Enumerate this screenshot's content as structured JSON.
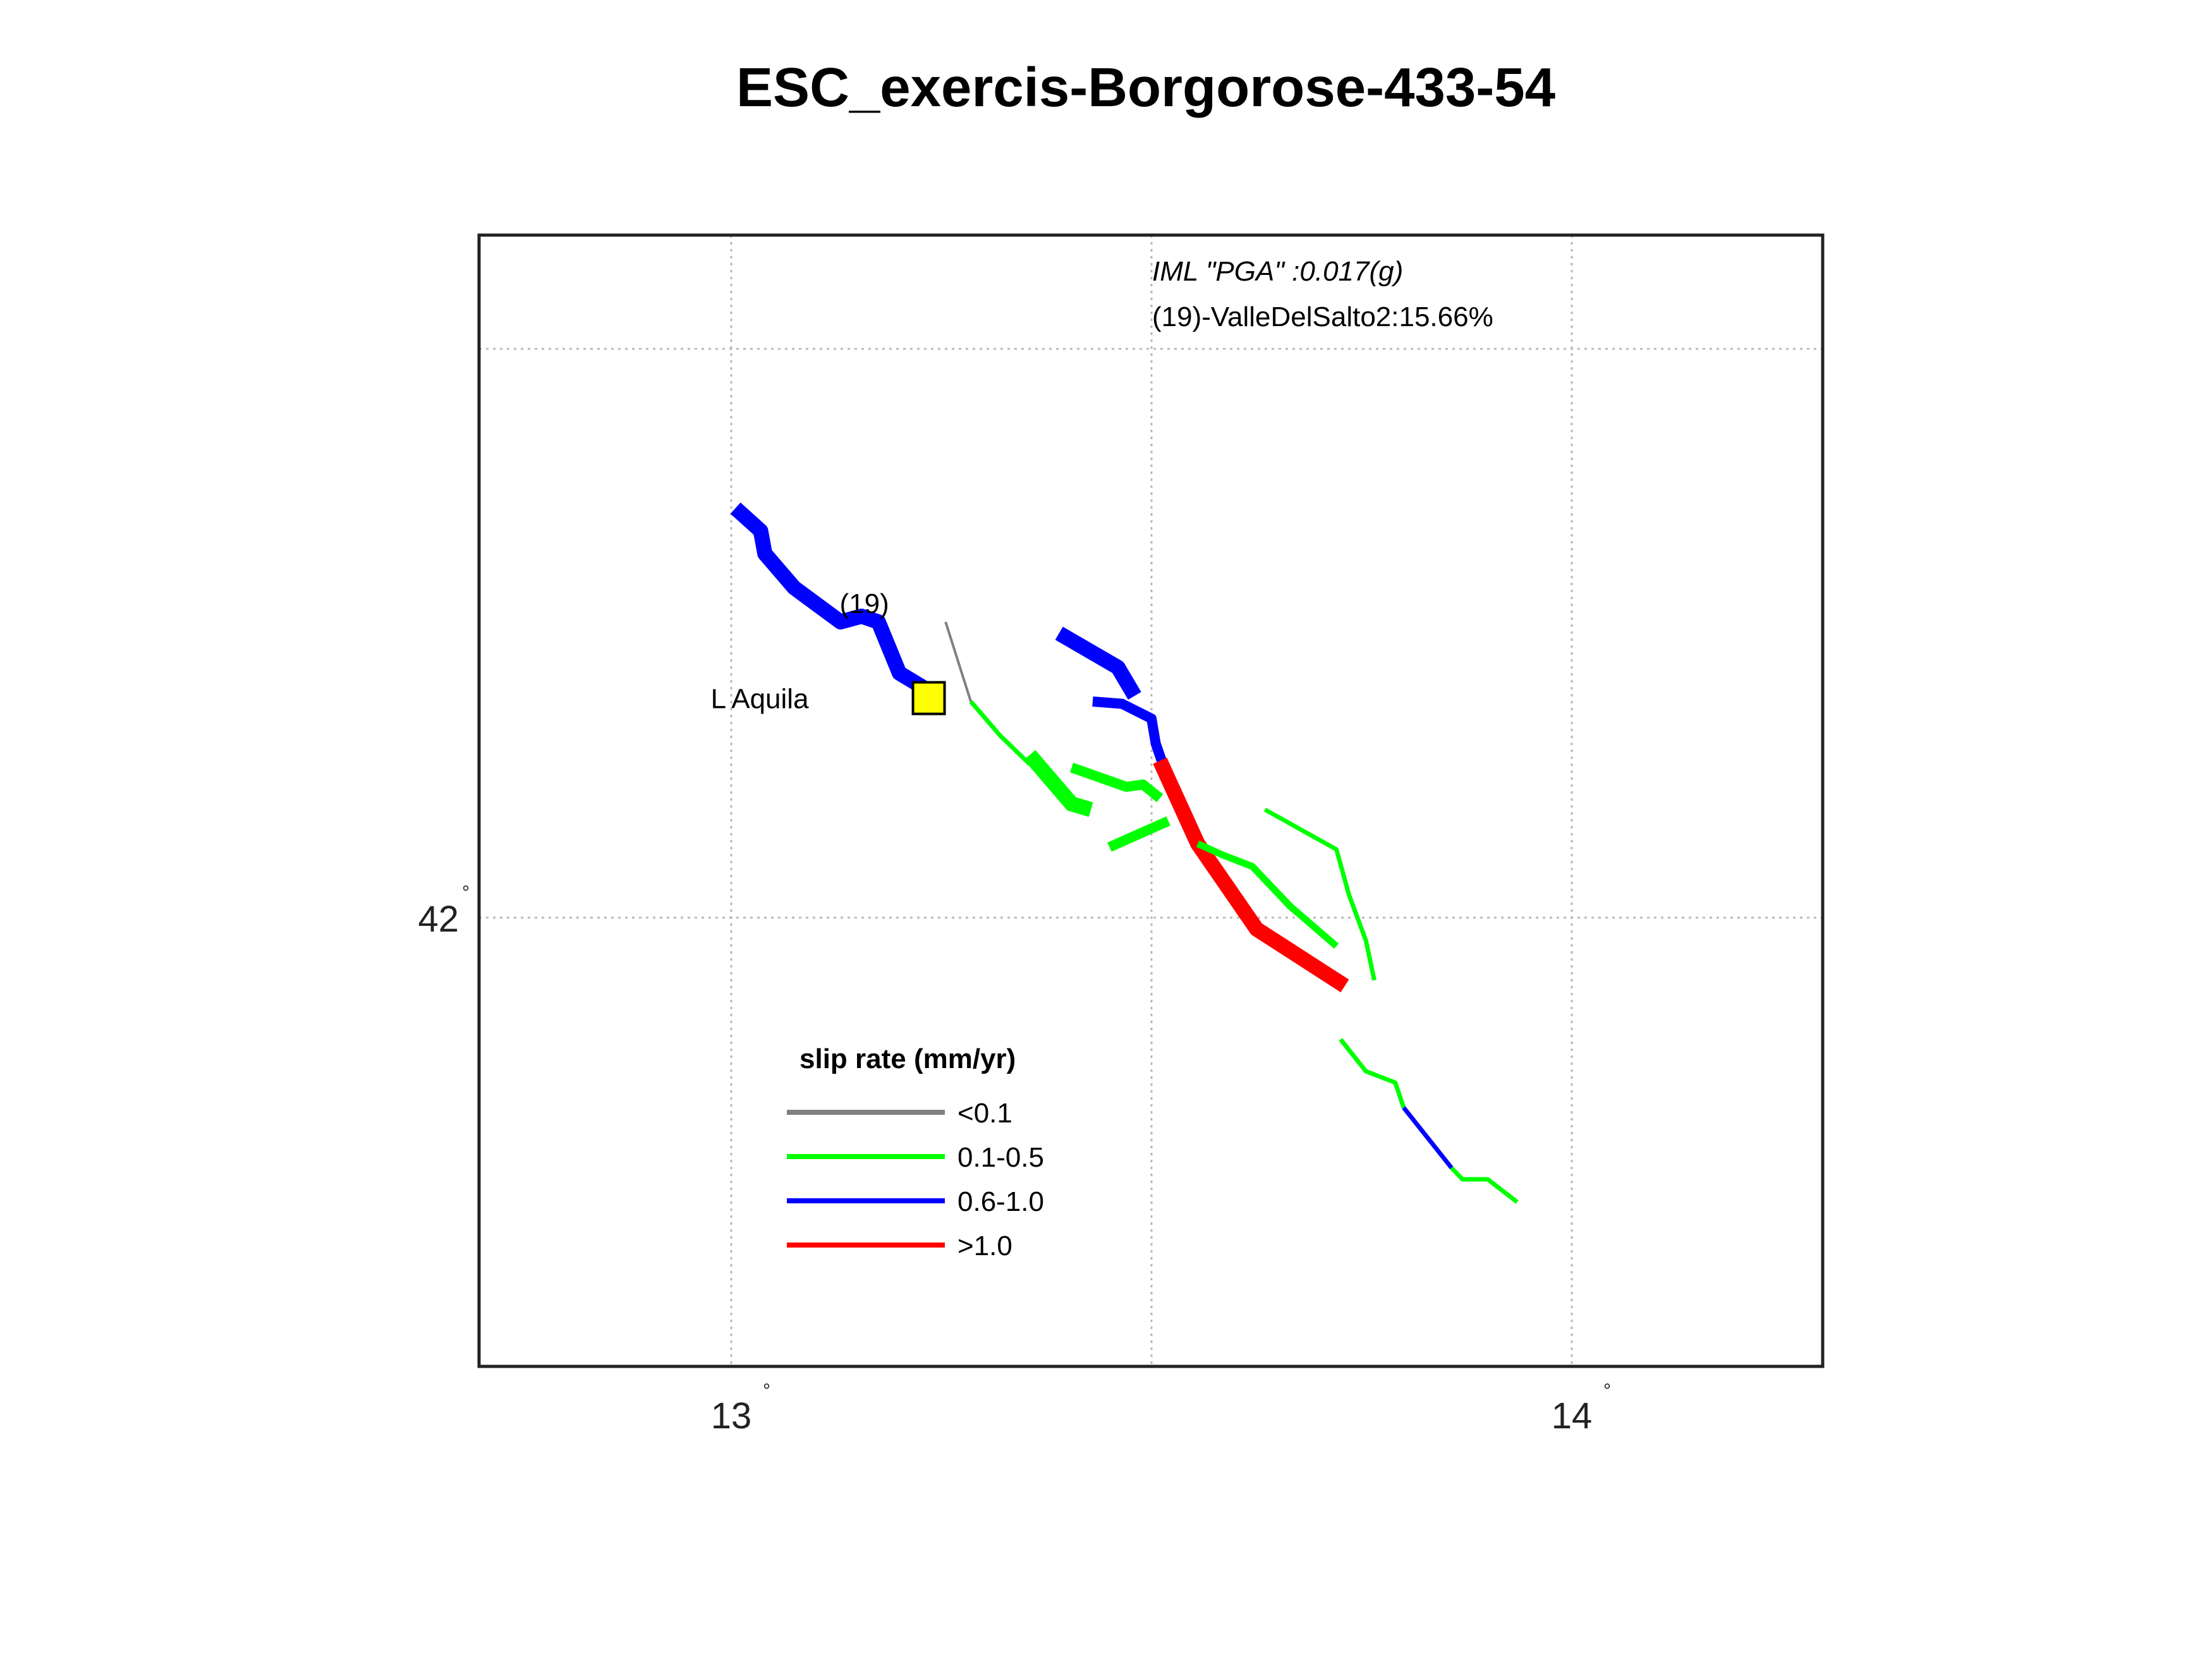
{
  "title": "ESC_exercis-Borgorose-433-54",
  "annotation": {
    "iml": "IML \"PGA\" :0.017(g)",
    "source": "(19)-ValleDelSalto2:15.66%"
  },
  "axes": {
    "x_ticks": [
      {
        "value": 13,
        "label": "13",
        "deg": "°"
      },
      {
        "value": 14,
        "label": "14",
        "deg": "°"
      }
    ],
    "y_ticks": [
      {
        "value": 42,
        "label": "42",
        "deg": "°"
      }
    ],
    "x_gridlines": [
      13,
      13.5,
      14
    ],
    "y_gridlines": [
      42,
      42.5
    ]
  },
  "site": {
    "name": "L Aquila",
    "lon": 13.235,
    "lat": 42.193,
    "marker_color": "#ffff00"
  },
  "fault_label": {
    "text": "(19)",
    "lon": 13.15,
    "lat": 42.29
  },
  "legend": {
    "title": "slip rate (mm/yr)",
    "items": [
      {
        "label": "<0.1",
        "color": "#808080"
      },
      {
        "label": "0.1-0.5",
        "color": "#00ff00"
      },
      {
        "label": "0.6-1.0",
        "color": "#0000ff"
      },
      {
        "label": ">1.0",
        "color": "#ff0000"
      }
    ]
  },
  "colors": {
    "gray": "#808080",
    "green": "#00ff00",
    "blue": "#0000ff",
    "red": "#ff0000"
  },
  "faults": [
    {
      "id": "blue-nw",
      "class": "blue",
      "weight": "thick",
      "coords": [
        [
          13.005,
          42.36
        ],
        [
          13.035,
          42.34
        ],
        [
          13.04,
          42.32
        ],
        [
          13.075,
          42.29
        ],
        [
          13.13,
          42.26
        ],
        [
          13.155,
          42.265
        ],
        [
          13.175,
          42.26
        ],
        [
          13.2,
          42.215
        ],
        [
          13.245,
          42.195
        ]
      ]
    },
    {
      "id": "gray-1",
      "class": "gray",
      "weight": "thin",
      "coords": [
        [
          13.255,
          42.26
        ],
        [
          13.285,
          42.19
        ]
      ]
    },
    {
      "id": "green-long",
      "class": "green",
      "weight": "medium",
      "coords": [
        [
          13.285,
          42.19
        ],
        [
          13.32,
          42.16
        ],
        [
          13.355,
          42.135
        ]
      ]
    },
    {
      "id": "green-thick-1",
      "class": "green",
      "weight": "thick",
      "coords": [
        [
          13.355,
          42.143
        ],
        [
          13.405,
          42.1
        ],
        [
          13.428,
          42.095
        ]
      ]
    },
    {
      "id": "green-mid-1",
      "class": "green",
      "weight": "thick-med",
      "coords": [
        [
          13.405,
          42.132
        ],
        [
          13.47,
          42.115
        ],
        [
          13.49,
          42.117
        ],
        [
          13.51,
          42.105
        ]
      ]
    },
    {
      "id": "green-mid-2",
      "class": "green",
      "weight": "thick-med",
      "coords": [
        [
          13.45,
          42.062
        ],
        [
          13.52,
          42.085
        ]
      ]
    },
    {
      "id": "blue-ne",
      "class": "blue",
      "weight": "thick",
      "coords": [
        [
          13.39,
          42.25
        ],
        [
          13.46,
          42.22
        ],
        [
          13.48,
          42.195
        ]
      ]
    },
    {
      "id": "blue-mid",
      "class": "blue",
      "weight": "thick-med",
      "coords": [
        [
          13.43,
          42.19
        ],
        [
          13.465,
          42.188
        ],
        [
          13.5,
          42.175
        ],
        [
          13.505,
          42.153
        ],
        [
          13.512,
          42.138
        ]
      ]
    },
    {
      "id": "red-main",
      "class": "red",
      "weight": "thick",
      "coords": [
        [
          13.51,
          42.138
        ],
        [
          13.555,
          42.065
        ],
        [
          13.625,
          41.99
        ],
        [
          13.73,
          41.94
        ]
      ]
    },
    {
      "id": "green-e1",
      "class": "green",
      "weight": "medium-thick",
      "coords": [
        [
          13.555,
          42.065
        ],
        [
          13.585,
          42.055
        ],
        [
          13.62,
          42.045
        ],
        [
          13.665,
          42.01
        ],
        [
          13.72,
          41.975
        ]
      ]
    },
    {
      "id": "green-e2",
      "class": "green",
      "weight": "medium",
      "coords": [
        [
          13.635,
          42.095
        ],
        [
          13.72,
          42.06
        ],
        [
          13.735,
          42.02
        ],
        [
          13.755,
          41.98
        ],
        [
          13.765,
          41.945
        ]
      ]
    },
    {
      "id": "green-s1",
      "class": "green",
      "weight": "medium",
      "coords": [
        [
          13.725,
          41.893
        ],
        [
          13.755,
          41.865
        ],
        [
          13.79,
          41.855
        ],
        [
          13.8,
          41.833
        ]
      ]
    },
    {
      "id": "blue-s",
      "class": "blue",
      "weight": "medium",
      "coords": [
        [
          13.8,
          41.833
        ],
        [
          13.857,
          41.78
        ]
      ]
    },
    {
      "id": "green-s2",
      "class": "green",
      "weight": "medium",
      "coords": [
        [
          13.857,
          41.78
        ],
        [
          13.87,
          41.77
        ],
        [
          13.9,
          41.77
        ],
        [
          13.935,
          41.75
        ]
      ]
    }
  ]
}
